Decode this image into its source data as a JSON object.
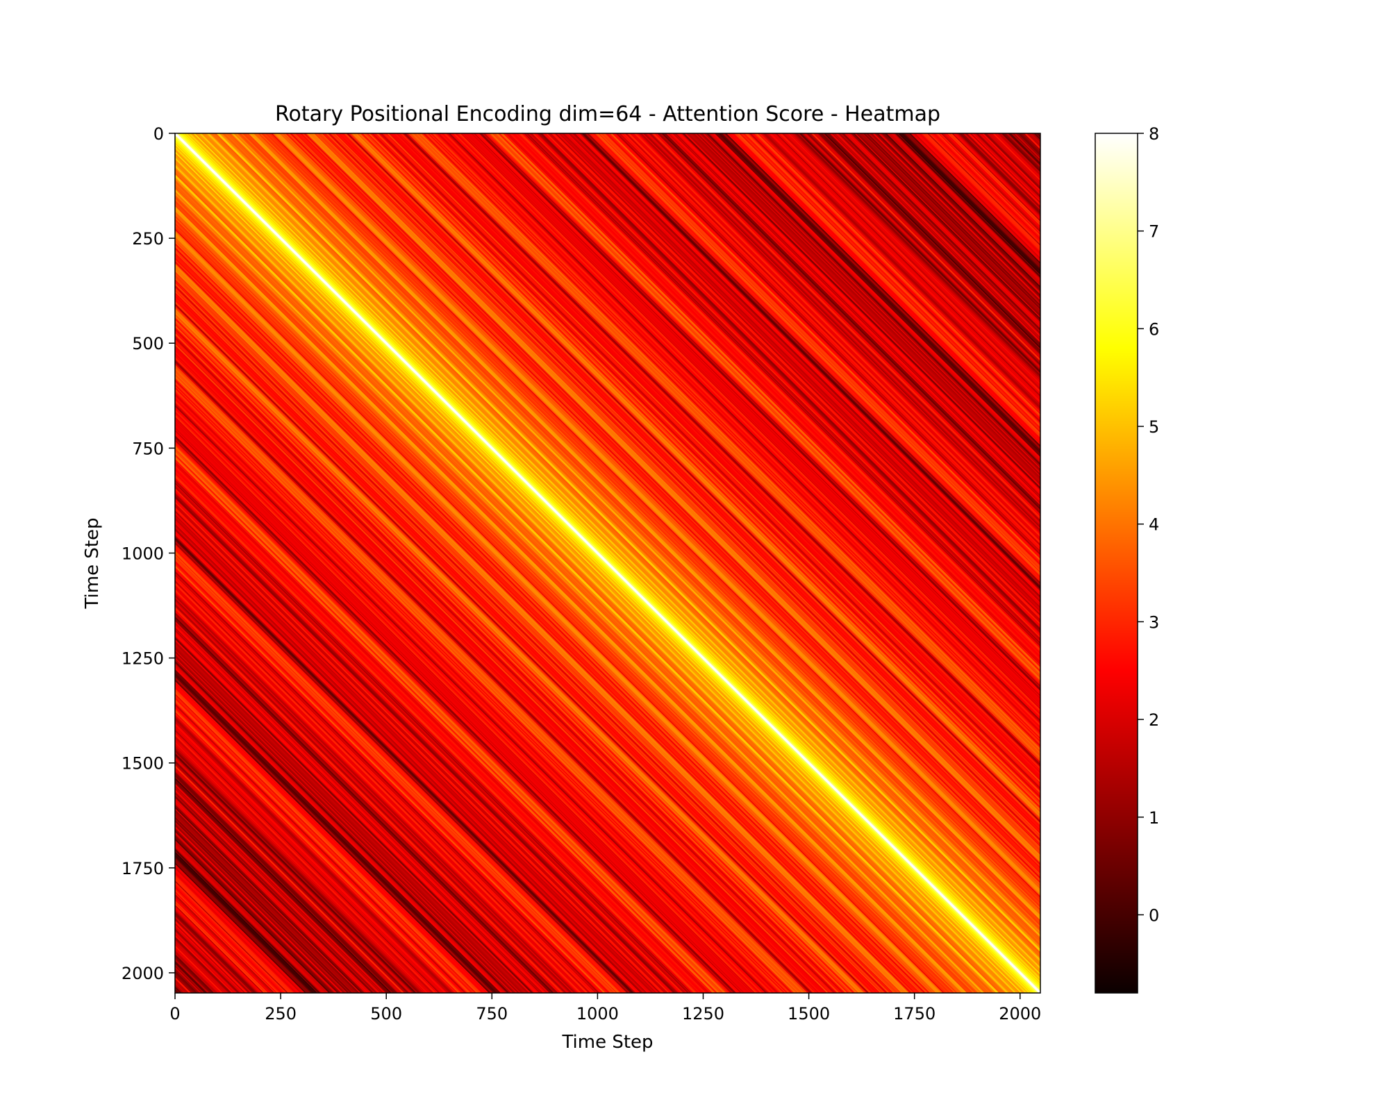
{
  "chart_data": {
    "type": "heatmap",
    "title": "Rotary Positional Encoding dim=64 - Attention Score - Heatmap",
    "xlabel": "Time Step",
    "ylabel": "Time Step",
    "x_range": [
      0,
      2048
    ],
    "y_range": [
      0,
      2048
    ],
    "y_inverted": true,
    "x_ticks": [
      "0",
      "250",
      "500",
      "750",
      "1000",
      "1250",
      "1500",
      "1750",
      "2000"
    ],
    "y_ticks": [
      "0",
      "250",
      "500",
      "750",
      "1000",
      "1250",
      "1500",
      "1750",
      "2000"
    ],
    "colormap": "hot",
    "colorbar_range": [
      -0.8,
      8
    ],
    "colorbar_ticks": [
      "0",
      "1",
      "2",
      "3",
      "4",
      "5",
      "6",
      "7",
      "8"
    ],
    "pattern": "Toeplitz: value depends on (column - row); peak ~8 on the main diagonal, oscillating roughly between -0.8 and 4 elsewhere",
    "dim": 64,
    "grid": false
  }
}
